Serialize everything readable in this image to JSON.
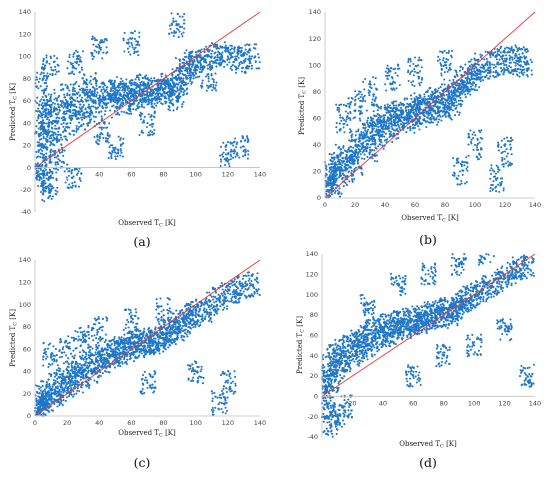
{
  "colors": {
    "points": "#1f77c9",
    "fit_line": "#e8393a",
    "axis": "#bfbfbf",
    "text": "#222222"
  },
  "chart_data": [
    {
      "panel_label": "(a)",
      "type": "scatter",
      "xlabel": "Observed T",
      "xlabel_sub": "C",
      "xlabel_unit": " [K]",
      "ylabel": "Predicted T",
      "ylabel_sub": "C",
      "ylabel_unit": " [K]",
      "xlim": [
        0,
        140
      ],
      "ylim": [
        -40,
        140
      ],
      "xticks": [
        40,
        60,
        80,
        100,
        120,
        140
      ],
      "yticks": [
        -40,
        -20,
        0,
        20,
        40,
        60,
        80,
        100,
        120,
        140
      ],
      "reference_line": [
        [
          0,
          0
        ],
        [
          140,
          140
        ]
      ],
      "point_density": "high",
      "points": [
        [
          1,
          -5
        ],
        [
          2,
          10
        ],
        [
          3,
          25
        ],
        [
          4,
          40
        ],
        [
          5,
          55
        ],
        [
          6,
          0
        ],
        [
          7,
          30
        ],
        [
          8,
          45
        ],
        [
          10,
          60
        ],
        [
          12,
          20
        ],
        [
          15,
          35
        ],
        [
          18,
          50
        ],
        [
          20,
          65
        ],
        [
          22,
          40
        ],
        [
          25,
          55
        ],
        [
          28,
          70
        ],
        [
          30,
          45
        ],
        [
          32,
          60
        ],
        [
          35,
          75
        ],
        [
          38,
          50
        ],
        [
          40,
          62
        ],
        [
          42,
          30
        ],
        [
          45,
          68
        ],
        [
          48,
          55
        ],
        [
          50,
          65
        ],
        [
          52,
          72
        ],
        [
          55,
          58
        ],
        [
          58,
          66
        ],
        [
          60,
          70
        ],
        [
          62,
          62
        ],
        [
          65,
          68
        ],
        [
          68,
          74
        ],
        [
          70,
          64
        ],
        [
          72,
          70
        ],
        [
          75,
          66
        ],
        [
          78,
          72
        ],
        [
          80,
          68
        ],
        [
          82,
          75
        ],
        [
          85,
          70
        ],
        [
          88,
          60
        ],
        [
          90,
          80
        ],
        [
          92,
          90
        ],
        [
          95,
          85
        ],
        [
          98,
          95
        ],
        [
          100,
          92
        ],
        [
          105,
          98
        ],
        [
          110,
          100
        ],
        [
          115,
          102
        ],
        [
          120,
          100
        ],
        [
          125,
          98
        ],
        [
          130,
          96
        ],
        [
          135,
          100
        ],
        [
          6,
          -12
        ],
        [
          9,
          -20
        ],
        [
          14,
          5
        ],
        [
          24,
          -8
        ],
        [
          3,
          80
        ],
        [
          10,
          90
        ],
        [
          25,
          95
        ],
        [
          40,
          108
        ],
        [
          60,
          112
        ],
        [
          88,
          128
        ],
        [
          108,
          80
        ],
        [
          120,
          12
        ],
        [
          128,
          18
        ],
        [
          50,
          18
        ],
        [
          70,
          40
        ],
        [
          90,
          70
        ]
      ]
    },
    {
      "panel_label": "(b)",
      "type": "scatter",
      "xlabel": "Observed T",
      "xlabel_sub": "C",
      "xlabel_unit": " [K]",
      "ylabel": "Predicted T",
      "ylabel_sub": "C",
      "ylabel_unit": " [K]",
      "xlim": [
        0,
        140
      ],
      "ylim": [
        0,
        140
      ],
      "xticks": [
        0,
        20,
        40,
        60,
        80,
        100,
        120,
        140
      ],
      "yticks": [
        0,
        20,
        40,
        60,
        80,
        100,
        120,
        140
      ],
      "reference_line": [
        [
          0,
          0
        ],
        [
          140,
          140
        ]
      ],
      "point_density": "high",
      "points": [
        [
          1,
          5
        ],
        [
          2,
          10
        ],
        [
          3,
          15
        ],
        [
          5,
          20
        ],
        [
          7,
          12
        ],
        [
          8,
          25
        ],
        [
          10,
          18
        ],
        [
          12,
          30
        ],
        [
          15,
          22
        ],
        [
          18,
          35
        ],
        [
          20,
          28
        ],
        [
          22,
          40
        ],
        [
          25,
          45
        ],
        [
          28,
          50
        ],
        [
          30,
          38
        ],
        [
          32,
          55
        ],
        [
          35,
          48
        ],
        [
          38,
          58
        ],
        [
          40,
          52
        ],
        [
          42,
          60
        ],
        [
          45,
          55
        ],
        [
          48,
          62
        ],
        [
          50,
          58
        ],
        [
          52,
          64
        ],
        [
          55,
          60
        ],
        [
          58,
          66
        ],
        [
          60,
          62
        ],
        [
          62,
          68
        ],
        [
          65,
          64
        ],
        [
          68,
          70
        ],
        [
          70,
          66
        ],
        [
          72,
          72
        ],
        [
          75,
          68
        ],
        [
          78,
          74
        ],
        [
          80,
          70
        ],
        [
          82,
          76
        ],
        [
          85,
          72
        ],
        [
          88,
          80
        ],
        [
          90,
          85
        ],
        [
          92,
          88
        ],
        [
          95,
          90
        ],
        [
          98,
          92
        ],
        [
          100,
          95
        ],
        [
          105,
          98
        ],
        [
          110,
          100
        ],
        [
          115,
          102
        ],
        [
          120,
          103
        ],
        [
          125,
          104
        ],
        [
          130,
          104
        ],
        [
          133,
          102
        ],
        [
          12,
          60
        ],
        [
          20,
          70
        ],
        [
          30,
          80
        ],
        [
          45,
          90
        ],
        [
          60,
          95
        ],
        [
          80,
          100
        ],
        [
          100,
          40
        ],
        [
          120,
          35
        ],
        [
          90,
          20
        ],
        [
          115,
          15
        ]
      ]
    },
    {
      "panel_label": "(c)",
      "type": "scatter",
      "xlabel": "Observed T",
      "xlabel_sub": "C",
      "xlabel_unit": " [K]",
      "ylabel": "Predicted T",
      "ylabel_sub": "C",
      "ylabel_unit": " [K]",
      "xlim": [
        0,
        140
      ],
      "ylim": [
        0,
        140
      ],
      "xticks": [
        0,
        20,
        40,
        60,
        80,
        100,
        120,
        140
      ],
      "yticks": [
        0,
        20,
        40,
        60,
        80,
        100,
        120,
        140
      ],
      "reference_line": [
        [
          0,
          0
        ],
        [
          140,
          140
        ]
      ],
      "point_density": "high",
      "points": [
        [
          1,
          3
        ],
        [
          2,
          8
        ],
        [
          3,
          12
        ],
        [
          4,
          5
        ],
        [
          5,
          18
        ],
        [
          6,
          10
        ],
        [
          8,
          22
        ],
        [
          10,
          15
        ],
        [
          12,
          28
        ],
        [
          15,
          20
        ],
        [
          18,
          32
        ],
        [
          20,
          25
        ],
        [
          22,
          38
        ],
        [
          25,
          30
        ],
        [
          28,
          42
        ],
        [
          30,
          36
        ],
        [
          32,
          48
        ],
        [
          35,
          40
        ],
        [
          38,
          52
        ],
        [
          40,
          45
        ],
        [
          42,
          55
        ],
        [
          45,
          50
        ],
        [
          48,
          58
        ],
        [
          50,
          54
        ],
        [
          52,
          60
        ],
        [
          55,
          57
        ],
        [
          58,
          62
        ],
        [
          60,
          60
        ],
        [
          62,
          64
        ],
        [
          65,
          63
        ],
        [
          68,
          66
        ],
        [
          70,
          65
        ],
        [
          72,
          68
        ],
        [
          75,
          67
        ],
        [
          78,
          70
        ],
        [
          80,
          70
        ],
        [
          82,
          73
        ],
        [
          85,
          75
        ],
        [
          88,
          78
        ],
        [
          90,
          82
        ],
        [
          92,
          85
        ],
        [
          95,
          88
        ],
        [
          98,
          90
        ],
        [
          100,
          92
        ],
        [
          105,
          95
        ],
        [
          110,
          100
        ],
        [
          115,
          105
        ],
        [
          120,
          110
        ],
        [
          125,
          112
        ],
        [
          130,
          116
        ],
        [
          135,
          118
        ],
        [
          10,
          55
        ],
        [
          20,
          62
        ],
        [
          30,
          70
        ],
        [
          40,
          78
        ],
        [
          60,
          85
        ],
        [
          80,
          95
        ],
        [
          100,
          40
        ],
        [
          120,
          30
        ],
        [
          115,
          12
        ],
        [
          70,
          30
        ]
      ]
    },
    {
      "panel_label": "(d)",
      "type": "scatter",
      "xlabel": "Observed T",
      "xlabel_sub": "C",
      "xlabel_unit": " [K]",
      "ylabel": "Predicted T",
      "ylabel_sub": "C",
      "ylabel_unit": " [K]",
      "xlim": [
        0,
        140
      ],
      "ylim": [
        -40,
        140
      ],
      "xticks": [
        20,
        40,
        60,
        80,
        100,
        120,
        140
      ],
      "yticks": [
        -40,
        -20,
        0,
        20,
        40,
        60,
        80,
        100,
        120,
        140
      ],
      "reference_line": [
        [
          0,
          0
        ],
        [
          140,
          140
        ]
      ],
      "point_density": "high",
      "points": [
        [
          1,
          0
        ],
        [
          2,
          10
        ],
        [
          3,
          20
        ],
        [
          4,
          -10
        ],
        [
          5,
          30
        ],
        [
          6,
          15
        ],
        [
          8,
          40
        ],
        [
          10,
          25
        ],
        [
          12,
          45
        ],
        [
          15,
          35
        ],
        [
          18,
          50
        ],
        [
          20,
          40
        ],
        [
          22,
          55
        ],
        [
          25,
          45
        ],
        [
          28,
          60
        ],
        [
          30,
          50
        ],
        [
          32,
          65
        ],
        [
          35,
          55
        ],
        [
          38,
          68
        ],
        [
          40,
          60
        ],
        [
          42,
          70
        ],
        [
          45,
          62
        ],
        [
          48,
          72
        ],
        [
          50,
          65
        ],
        [
          52,
          74
        ],
        [
          55,
          68
        ],
        [
          58,
          76
        ],
        [
          60,
          70
        ],
        [
          62,
          78
        ],
        [
          65,
          72
        ],
        [
          68,
          80
        ],
        [
          70,
          74
        ],
        [
          72,
          82
        ],
        [
          75,
          76
        ],
        [
          78,
          84
        ],
        [
          80,
          78
        ],
        [
          82,
          86
        ],
        [
          85,
          80
        ],
        [
          88,
          88
        ],
        [
          90,
          85
        ],
        [
          92,
          92
        ],
        [
          95,
          95
        ],
        [
          98,
          98
        ],
        [
          100,
          100
        ],
        [
          105,
          104
        ],
        [
          110,
          108
        ],
        [
          115,
          112
        ],
        [
          120,
          118
        ],
        [
          125,
          122
        ],
        [
          130,
          126
        ],
        [
          135,
          128
        ],
        [
          6,
          -30
        ],
        [
          10,
          -20
        ],
        [
          15,
          -10
        ],
        [
          30,
          90
        ],
        [
          50,
          110
        ],
        [
          70,
          120
        ],
        [
          90,
          130
        ],
        [
          108,
          140
        ],
        [
          60,
          20
        ],
        [
          80,
          40
        ],
        [
          100,
          50
        ],
        [
          120,
          65
        ],
        [
          135,
          20
        ]
      ]
    }
  ]
}
